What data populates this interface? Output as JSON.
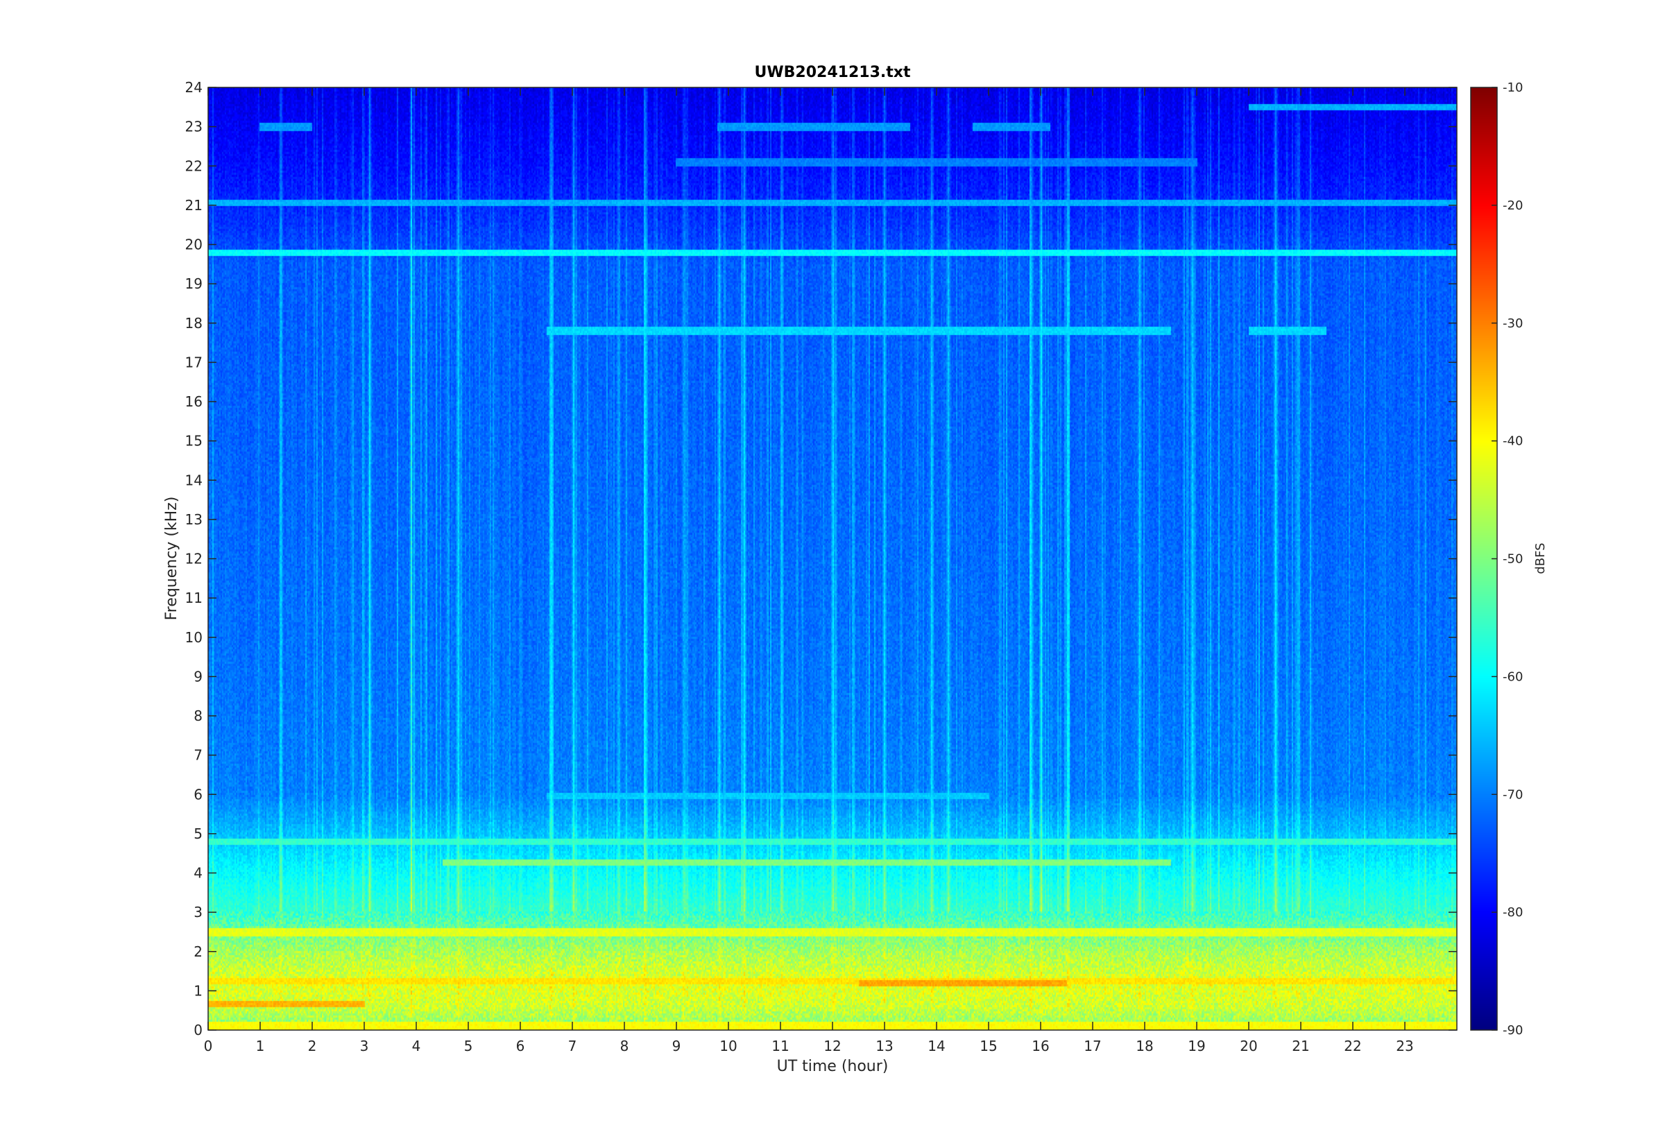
{
  "chart_data": {
    "type": "heatmap",
    "title": "UWB20241213.txt",
    "xlabel": "UT time (hour)",
    "ylabel": "Frequency (kHz)",
    "xlim": [
      0,
      24
    ],
    "ylim": [
      0,
      24
    ],
    "x_ticks": [
      0,
      1,
      2,
      3,
      4,
      5,
      6,
      7,
      8,
      9,
      10,
      11,
      12,
      13,
      14,
      15,
      16,
      17,
      18,
      19,
      20,
      21,
      22,
      23
    ],
    "y_ticks": [
      0,
      1,
      2,
      3,
      4,
      5,
      6,
      7,
      8,
      9,
      10,
      11,
      12,
      13,
      14,
      15,
      16,
      17,
      18,
      19,
      20,
      21,
      22,
      23,
      24
    ],
    "colorbar": {
      "label": "dBFS",
      "range": [
        -90,
        -10
      ],
      "ticks": [
        -90,
        -80,
        -70,
        -60,
        -50,
        -40,
        -30,
        -20,
        -10
      ],
      "colormap": "jet"
    },
    "background_level_by_frequency_khz": [
      {
        "freq": 0.0,
        "dbfs": -50
      },
      {
        "freq": 0.6,
        "dbfs": -44
      },
      {
        "freq": 1.2,
        "dbfs": -42
      },
      {
        "freq": 2.0,
        "dbfs": -47
      },
      {
        "freq": 3.0,
        "dbfs": -56
      },
      {
        "freq": 4.0,
        "dbfs": -60
      },
      {
        "freq": 5.0,
        "dbfs": -65
      },
      {
        "freq": 6.0,
        "dbfs": -70
      },
      {
        "freq": 9.0,
        "dbfs": -71
      },
      {
        "freq": 14.0,
        "dbfs": -72
      },
      {
        "freq": 19.5,
        "dbfs": -73
      },
      {
        "freq": 20.5,
        "dbfs": -76
      },
      {
        "freq": 22.0,
        "dbfs": -79
      },
      {
        "freq": 24.0,
        "dbfs": -82
      }
    ],
    "horizontal_lines": [
      {
        "freq": 19.8,
        "t0": 0,
        "t1": 24,
        "dbfs": -60
      },
      {
        "freq": 21.05,
        "t0": 0,
        "t1": 24,
        "dbfs": -66
      },
      {
        "freq": 17.8,
        "t0": 6.5,
        "t1": 18.5,
        "dbfs": -63
      },
      {
        "freq": 17.8,
        "t0": 20.0,
        "t1": 21.5,
        "dbfs": -63
      },
      {
        "freq": 23.0,
        "t0": 1.0,
        "t1": 2.0,
        "dbfs": -68
      },
      {
        "freq": 23.0,
        "t0": 9.8,
        "t1": 13.5,
        "dbfs": -68
      },
      {
        "freq": 23.0,
        "t0": 14.7,
        "t1": 16.2,
        "dbfs": -68
      },
      {
        "freq": 23.5,
        "t0": 20.0,
        "t1": 24,
        "dbfs": -66
      },
      {
        "freq": 22.1,
        "t0": 9.0,
        "t1": 19.0,
        "dbfs": -70
      },
      {
        "freq": 5.95,
        "t0": 6.5,
        "t1": 15.0,
        "dbfs": -64
      },
      {
        "freq": 4.25,
        "t0": 4.5,
        "t1": 18.5,
        "dbfs": -50
      },
      {
        "freq": 4.8,
        "t0": 0,
        "t1": 24,
        "dbfs": -56
      },
      {
        "freq": 2.5,
        "t0": 0,
        "t1": 24,
        "dbfs": -42
      },
      {
        "freq": 1.25,
        "t0": 0,
        "t1": 24,
        "dbfs": -38
      },
      {
        "freq": 0.65,
        "t0": 0,
        "t1": 3.0,
        "dbfs": -34
      },
      {
        "freq": 1.2,
        "t0": 12.5,
        "t1": 16.5,
        "dbfs": -33
      },
      {
        "freq": 0.1,
        "t0": 0,
        "t1": 24,
        "dbfs": -40
      }
    ],
    "vertical_streaks_hours": [
      1.4,
      3.1,
      3.9,
      4.8,
      6.6,
      7.0,
      8.4,
      9.8,
      10.3,
      11.0,
      12.0,
      13.0,
      13.9,
      14.2,
      15.8,
      16.0,
      16.5,
      17.9,
      18.9,
      20.5
    ]
  }
}
